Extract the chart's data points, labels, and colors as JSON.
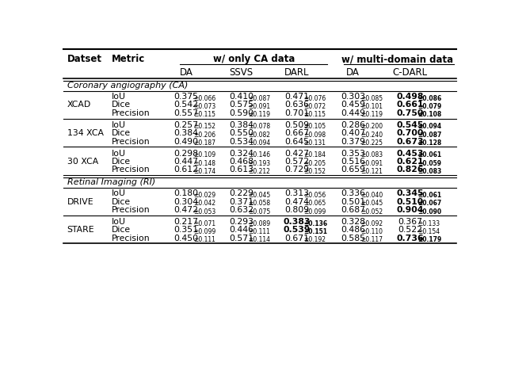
{
  "section1_label": "Coronary angiography (CA)",
  "section2_label": "Retinal Imaging (RI)",
  "col_headers_top": [
    "w/ only CA data",
    "w/ multi-domain data"
  ],
  "col_headers_sub": [
    "DA",
    "SSVS",
    "DARL",
    "DA",
    "C-DARL"
  ],
  "datasets": [
    {
      "name": "XCAD",
      "section": "CA",
      "rows": [
        {
          "metric": "IoU",
          "vals": [
            "0.375",
            "0.410",
            "0.471",
            "0.303",
            "0.498"
          ],
          "stds": [
            "0.066",
            "0.087",
            "0.076",
            "0.085",
            "0.086"
          ],
          "bold": [
            false,
            false,
            false,
            false,
            true
          ]
        },
        {
          "metric": "Dice",
          "vals": [
            "0.542",
            "0.575",
            "0.636",
            "0.459",
            "0.661"
          ],
          "stds": [
            "0.073",
            "0.091",
            "0.072",
            "0.101",
            "0.079"
          ],
          "bold": [
            false,
            false,
            false,
            false,
            true
          ]
        },
        {
          "metric": "Precision",
          "vals": [
            "0.557",
            "0.590",
            "0.701",
            "0.449",
            "0.750"
          ],
          "stds": [
            "0.115",
            "0.119",
            "0.115",
            "0.119",
            "0.108"
          ],
          "bold": [
            false,
            false,
            false,
            false,
            true
          ]
        }
      ]
    },
    {
      "name": "134 XCA",
      "section": "CA",
      "rows": [
        {
          "metric": "IoU",
          "vals": [
            "0.257",
            "0.384",
            "0.509",
            "0.286",
            "0.545"
          ],
          "stds": [
            "0.152",
            "0.078",
            "0.105",
            "0.200",
            "0.094"
          ],
          "bold": [
            false,
            false,
            false,
            false,
            true
          ]
        },
        {
          "metric": "Dice",
          "vals": [
            "0.384",
            "0.550",
            "0.667",
            "0.407",
            "0.700"
          ],
          "stds": [
            "0.206",
            "0.082",
            "0.098",
            "0.240",
            "0.087"
          ],
          "bold": [
            false,
            false,
            false,
            false,
            true
          ]
        },
        {
          "metric": "Precision",
          "vals": [
            "0.490",
            "0.534",
            "0.645",
            "0.379",
            "0.673"
          ],
          "stds": [
            "0.187",
            "0.094",
            "0.131",
            "0.225",
            "0.128"
          ],
          "bold": [
            false,
            false,
            false,
            false,
            true
          ]
        }
      ]
    },
    {
      "name": "30 XCA",
      "section": "CA",
      "rows": [
        {
          "metric": "IoU",
          "vals": [
            "0.298",
            "0.324",
            "0.427",
            "0.353",
            "0.453"
          ],
          "stds": [
            "0.109",
            "0.146",
            "0.184",
            "0.083",
            "0.061"
          ],
          "bold": [
            false,
            false,
            false,
            false,
            true
          ]
        },
        {
          "metric": "Dice",
          "vals": [
            "0.447",
            "0.468",
            "0.572",
            "0.516",
            "0.621"
          ],
          "stds": [
            "0.148",
            "0.193",
            "0.205",
            "0.091",
            "0.059"
          ],
          "bold": [
            false,
            false,
            false,
            false,
            true
          ]
        },
        {
          "metric": "Precision",
          "vals": [
            "0.612",
            "0.613",
            "0.729",
            "0.659",
            "0.826"
          ],
          "stds": [
            "0.174",
            "0.212",
            "0.152",
            "0.121",
            "0.083"
          ],
          "bold": [
            false,
            false,
            false,
            false,
            true
          ]
        }
      ]
    },
    {
      "name": "DRIVE",
      "section": "RI",
      "rows": [
        {
          "metric": "IoU",
          "vals": [
            "0.180",
            "0.229",
            "0.313",
            "0.336",
            "0.345"
          ],
          "stds": [
            "0.029",
            "0.045",
            "0.056",
            "0.040",
            "0.061"
          ],
          "bold": [
            false,
            false,
            false,
            false,
            true
          ]
        },
        {
          "metric": "Dice",
          "vals": [
            "0.304",
            "0.371",
            "0.474",
            "0.501",
            "0.510"
          ],
          "stds": [
            "0.042",
            "0.058",
            "0.065",
            "0.045",
            "0.067"
          ],
          "bold": [
            false,
            false,
            false,
            false,
            true
          ]
        },
        {
          "metric": "Precision",
          "vals": [
            "0.472",
            "0.632",
            "0.809",
            "0.687",
            "0.904"
          ],
          "stds": [
            "0.053",
            "0.075",
            "0.099",
            "0.052",
            "0.090"
          ],
          "bold": [
            false,
            false,
            false,
            false,
            true
          ]
        }
      ]
    },
    {
      "name": "STARE",
      "section": "RI",
      "rows": [
        {
          "metric": "IoU",
          "vals": [
            "0.217",
            "0.293",
            "0.383",
            "0.328",
            "0.367"
          ],
          "stds": [
            "0.071",
            "0.089",
            "0.136",
            "0.092",
            "0.133"
          ],
          "bold": [
            false,
            false,
            true,
            false,
            false
          ]
        },
        {
          "metric": "Dice",
          "vals": [
            "0.351",
            "0.446",
            "0.539",
            "0.486",
            "0.522"
          ],
          "stds": [
            "0.099",
            "0.111",
            "0.151",
            "0.110",
            "0.154"
          ],
          "bold": [
            false,
            false,
            true,
            false,
            false
          ]
        },
        {
          "metric": "Precision",
          "vals": [
            "0.450",
            "0.571",
            "0.671",
            "0.585",
            "0.736"
          ],
          "stds": [
            "0.111",
            "0.114",
            "0.192",
            "0.117",
            "0.179"
          ],
          "bold": [
            false,
            false,
            false,
            false,
            true
          ]
        }
      ]
    }
  ],
  "bg_color": "#ffffff",
  "fs_main": 7.8,
  "fs_sub": 5.5,
  "fs_header": 8.5,
  "fs_section": 8.0
}
